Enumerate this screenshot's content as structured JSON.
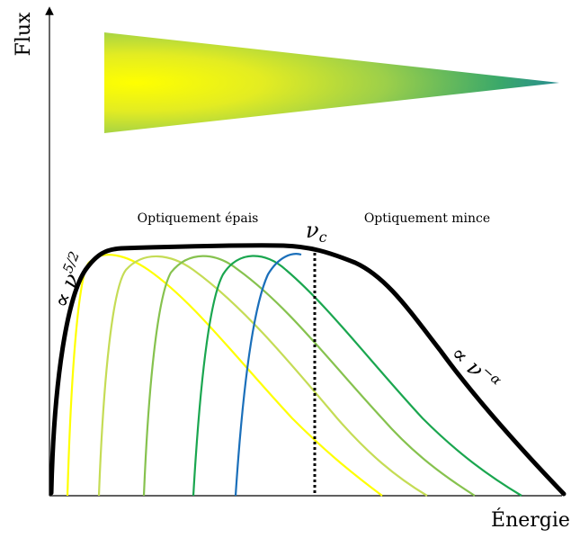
{
  "axes": {
    "y_label": "Flux",
    "x_label": "Énergie"
  },
  "regions": {
    "thick_label": "Optiquement épais",
    "thin_label": "Optiquement mince"
  },
  "critical_frequency_label": "ν",
  "critical_frequency_sub": "c",
  "slope_low_label": "∝ ν",
  "slope_low_exp": "5/2",
  "slope_high_label": "∝ ν",
  "slope_high_exp": "−α",
  "colors": {
    "envelope": "#000000",
    "component_curves": [
      "#ffff00",
      "#c5dc55",
      "#86c24e",
      "#1aa64f",
      "#0d9e6e",
      "#1a6fba"
    ],
    "gradient_start": "#ffff00",
    "gradient_end": "#1f7fa6"
  }
}
